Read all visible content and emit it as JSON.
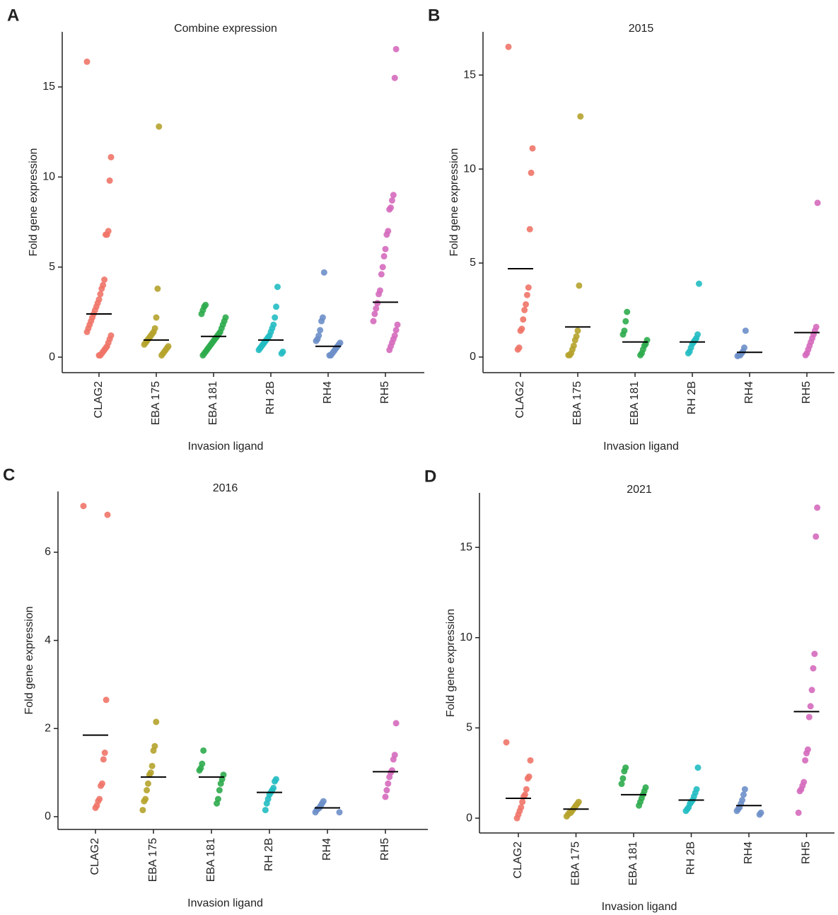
{
  "chart_data": [
    {
      "type": "strip",
      "panel": "A",
      "title": "Combine expression",
      "x_label": "Invasion ligand",
      "y_label": "Fold gene expression",
      "categories": [
        "CLAG2",
        "EBA 175",
        "EBA 181",
        "RH 2B",
        "RH4",
        "RH5"
      ],
      "colors": [
        "#ef7468",
        "#b5a32c",
        "#2eab4c",
        "#22bcc2",
        "#6d8fc9",
        "#d56abd"
      ],
      "ylim": [
        -0.86,
        18.06
      ],
      "yticks": [
        0,
        5,
        10,
        15
      ],
      "values": [
        [
          16.4,
          11.1,
          9.8,
          7.0,
          6.8,
          6.8,
          4.3,
          4.0,
          3.8,
          3.5,
          3.2,
          3.0,
          2.8,
          2.6,
          2.4,
          2.2,
          2.0,
          1.8,
          1.6,
          1.4,
          1.2,
          1.0,
          0.8,
          0.6,
          0.5,
          0.4,
          0.3,
          0.2,
          0.1,
          0.1
        ],
        [
          12.8,
          3.8,
          2.2,
          1.6,
          1.4,
          1.3,
          1.2,
          1.1,
          1.0,
          0.9,
          0.8,
          0.7,
          0.6,
          0.5,
          0.4,
          0.3,
          0.2,
          0.1
        ],
        [
          2.9,
          2.8,
          2.6,
          2.4,
          2.2,
          2.0,
          1.8,
          1.6,
          1.4,
          1.3,
          1.2,
          1.1,
          1.0,
          0.9,
          0.8,
          0.7,
          0.6,
          0.5,
          0.4,
          0.3,
          0.2,
          0.1
        ],
        [
          3.9,
          2.8,
          2.2,
          1.8,
          1.6,
          1.4,
          1.2,
          1.1,
          1.0,
          0.9,
          0.8,
          0.7,
          0.6,
          0.5,
          0.4,
          0.3,
          0.2
        ],
        [
          4.7,
          2.2,
          2.0,
          1.5,
          1.2,
          1.0,
          0.9,
          0.8,
          0.7,
          0.6,
          0.5,
          0.4,
          0.3,
          0.2,
          0.1,
          0.1
        ],
        [
          17.1,
          15.5,
          9.0,
          8.7,
          8.3,
          8.2,
          7.0,
          6.8,
          6.0,
          5.6,
          5.0,
          4.6,
          3.7,
          3.5,
          3.0,
          2.7,
          2.4,
          2.0,
          1.8,
          1.5,
          1.2,
          1.0,
          0.8,
          0.6,
          0.4
        ]
      ],
      "means": [
        2.4,
        0.95,
        1.15,
        0.95,
        0.6,
        3.05
      ]
    },
    {
      "type": "strip",
      "panel": "B",
      "title": "2015",
      "x_label": "Invasion ligand",
      "y_label": "Fold gene expression",
      "categories": [
        "CLAG2",
        "EBA 175",
        "EBA 181",
        "RH 2B",
        "RH4",
        "RH5"
      ],
      "colors": [
        "#ef7468",
        "#b5a32c",
        "#2eab4c",
        "#22bcc2",
        "#6d8fc9",
        "#d56abd"
      ],
      "ylim": [
        -0.83,
        17.3
      ],
      "yticks": [
        0,
        5,
        10,
        15
      ],
      "values": [
        [
          16.5,
          11.1,
          9.8,
          6.8,
          3.7,
          3.3,
          2.8,
          2.5,
          2.0,
          1.5,
          1.4,
          0.5,
          0.4
        ],
        [
          12.8,
          3.8,
          1.4,
          1.1,
          0.9,
          0.6,
          0.4,
          0.2,
          0.1,
          0.1
        ],
        [
          2.4,
          1.9,
          1.4,
          1.2,
          0.9,
          0.7,
          0.6,
          0.4,
          0.2,
          0.1
        ],
        [
          3.9,
          1.2,
          1.0,
          0.9,
          0.8,
          0.7,
          0.5,
          0.3,
          0.2
        ],
        [
          1.4,
          0.5,
          0.3,
          0.2,
          0.1,
          0.1,
          0.05
        ],
        [
          8.2,
          1.6,
          1.4,
          1.2,
          1.0,
          0.8,
          0.6,
          0.4,
          0.2,
          0.1
        ]
      ],
      "means": [
        4.7,
        1.6,
        0.8,
        0.8,
        0.25,
        1.3
      ]
    },
    {
      "type": "strip",
      "panel": "C",
      "title": "2016",
      "x_label": "Invasion ligand",
      "y_label": "Fold gene expression",
      "categories": [
        "CLAG2",
        "EBA 175",
        "EBA 181",
        "RH 2B",
        "RH4",
        "RH5"
      ],
      "colors": [
        "#ef7468",
        "#b5a32c",
        "#2eab4c",
        "#22bcc2",
        "#6d8fc9",
        "#d56abd"
      ],
      "ylim": [
        -0.29,
        7.38
      ],
      "yticks": [
        0,
        2,
        4,
        6
      ],
      "values": [
        [
          7.05,
          6.85,
          2.65,
          1.45,
          1.3,
          0.75,
          0.7,
          0.4,
          0.35,
          0.25,
          0.2
        ],
        [
          2.15,
          1.6,
          1.5,
          1.15,
          1.0,
          0.95,
          0.75,
          0.6,
          0.4,
          0.35,
          0.15
        ],
        [
          1.5,
          1.2,
          1.1,
          1.05,
          0.95,
          0.85,
          0.75,
          0.6,
          0.4,
          0.3
        ],
        [
          0.85,
          0.8,
          0.65,
          0.6,
          0.55,
          0.5,
          0.4,
          0.3,
          0.15
        ],
        [
          0.35,
          0.3,
          0.25,
          0.2,
          0.18,
          0.15,
          0.1,
          0.1
        ],
        [
          2.12,
          1.4,
          1.3,
          1.05,
          1.0,
          0.9,
          0.75,
          0.6,
          0.45
        ]
      ],
      "means": [
        1.85,
        0.9,
        0.9,
        0.55,
        0.2,
        1.02
      ]
    },
    {
      "type": "strip",
      "panel": "D",
      "title": "2021",
      "x_label": "Invasion ligand",
      "y_label": "Fold gene expression",
      "categories": [
        "CLAG2",
        "EBA 175",
        "EBA 181",
        "RH 2B",
        "RH4",
        "RH5"
      ],
      "colors": [
        "#ef7468",
        "#b5a32c",
        "#2eab4c",
        "#22bcc2",
        "#6d8fc9",
        "#d56abd"
      ],
      "ylim": [
        -0.82,
        18.02
      ],
      "yticks": [
        0,
        5,
        10,
        15
      ],
      "values": [
        [
          4.2,
          3.2,
          2.3,
          2.2,
          1.6,
          1.3,
          1.2,
          0.9,
          0.6,
          0.4,
          0.2,
          0.0
        ],
        [
          0.9,
          0.8,
          0.7,
          0.6,
          0.5,
          0.4,
          0.3,
          0.3,
          0.2,
          0.1
        ],
        [
          2.8,
          2.6,
          2.2,
          1.9,
          1.7,
          1.5,
          1.3,
          1.1,
          0.9,
          0.7
        ],
        [
          2.8,
          1.6,
          1.4,
          1.2,
          1.0,
          0.9,
          0.8,
          0.6,
          0.5,
          0.4
        ],
        [
          1.6,
          1.3,
          1.0,
          0.8,
          0.6,
          0.5,
          0.4,
          0.3,
          0.2
        ],
        [
          17.2,
          15.6,
          9.1,
          8.3,
          7.1,
          6.2,
          5.6,
          3.8,
          3.6,
          3.2,
          2.0,
          1.8,
          1.6,
          1.5,
          0.3
        ]
      ],
      "means": [
        1.1,
        0.5,
        1.3,
        1.0,
        0.7,
        5.9
      ]
    }
  ]
}
